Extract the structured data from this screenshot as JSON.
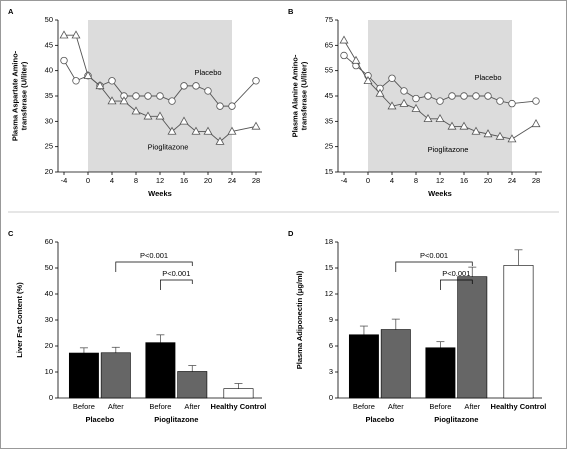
{
  "chart_data": [
    {
      "type": "line",
      "panel": "A",
      "ylabel": [
        "Plasma Aspartate Amino-",
        "transferase (U/liter)"
      ],
      "xlabel": "Weeks",
      "x": [
        -4,
        -2,
        0,
        2,
        4,
        6,
        8,
        10,
        12,
        14,
        16,
        18,
        20,
        22,
        24,
        28
      ],
      "xlim": [
        -5,
        29
      ],
      "xticks": [
        -4,
        0,
        4,
        8,
        12,
        16,
        20,
        24,
        28
      ],
      "ylim": [
        20,
        50
      ],
      "yticks": [
        20,
        25,
        30,
        35,
        40,
        45,
        50
      ],
      "shade": [
        0,
        24
      ],
      "shade_color": "#dcdcdc",
      "series": [
        {
          "name": "Placebo",
          "marker": "circle",
          "color": "#555555",
          "values": [
            42,
            38,
            39,
            37,
            38,
            35,
            35,
            35,
            35,
            34,
            37,
            37,
            36,
            33,
            33,
            38
          ]
        },
        {
          "name": "Pioglitazone",
          "marker": "triangle",
          "color": "#555555",
          "values": [
            47,
            47,
            39,
            37,
            34,
            34,
            32,
            31,
            31,
            28,
            30,
            28,
            28,
            26,
            28,
            29
          ]
        }
      ]
    },
    {
      "type": "line",
      "panel": "B",
      "ylabel": [
        "Plasma Alanine Amino-",
        "transferase (U/liter)"
      ],
      "xlabel": "Weeks",
      "x": [
        -4,
        -2,
        0,
        2,
        4,
        6,
        8,
        10,
        12,
        14,
        16,
        18,
        20,
        22,
        24,
        28
      ],
      "xlim": [
        -5,
        29
      ],
      "xticks": [
        -4,
        0,
        4,
        8,
        12,
        16,
        20,
        24,
        28
      ],
      "ylim": [
        15,
        75
      ],
      "yticks": [
        15,
        25,
        35,
        45,
        55,
        65,
        75
      ],
      "shade": [
        0,
        24
      ],
      "shade_color": "#dcdcdc",
      "series": [
        {
          "name": "Placebo",
          "marker": "circle",
          "color": "#555555",
          "values": [
            61,
            57,
            53,
            48,
            52,
            47,
            44,
            45,
            43,
            45,
            45,
            45,
            45,
            43,
            42,
            43
          ]
        },
        {
          "name": "Pioglitazone",
          "marker": "triangle",
          "color": "#555555",
          "values": [
            67,
            59,
            51,
            46,
            41,
            42,
            40,
            36,
            36,
            33,
            33,
            31,
            30,
            29,
            28,
            34
          ]
        }
      ]
    },
    {
      "type": "bar",
      "panel": "C",
      "ylabel": [
        "Liver Fat Content (%)"
      ],
      "categories": [
        "Before",
        "After",
        "Before",
        "After",
        "Healthy Control"
      ],
      "groups": [
        "Placebo",
        "Pioglitazone"
      ],
      "values": [
        17.3,
        17.4,
        21.3,
        10.2,
        3.6
      ],
      "errors": [
        2.0,
        2.1,
        3.0,
        2.3,
        2.0
      ],
      "colors": [
        "#000000",
        "#666666",
        "#000000",
        "#666666",
        "#ffffff"
      ],
      "ylim": [
        0,
        60
      ],
      "yticks": [
        0,
        10,
        20,
        30,
        40,
        50,
        60
      ],
      "annotations": [
        "P<0.001",
        "P<0.001"
      ]
    },
    {
      "type": "bar",
      "panel": "D",
      "ylabel": [
        "Plasma Adiponectin (μg/ml)"
      ],
      "categories": [
        "Before",
        "After",
        "Before",
        "After",
        "Healthy Control"
      ],
      "groups": [
        "Placebo",
        "Pioglitazone"
      ],
      "values": [
        7.3,
        7.9,
        5.8,
        14.0,
        15.3
      ],
      "errors": [
        1.0,
        1.2,
        0.7,
        1.1,
        1.8
      ],
      "colors": [
        "#000000",
        "#666666",
        "#000000",
        "#666666",
        "#ffffff"
      ],
      "ylim": [
        0,
        18
      ],
      "yticks": [
        0,
        3,
        6,
        9,
        12,
        15,
        18
      ],
      "annotations": [
        "P<0.001",
        "P<0.001"
      ]
    }
  ]
}
